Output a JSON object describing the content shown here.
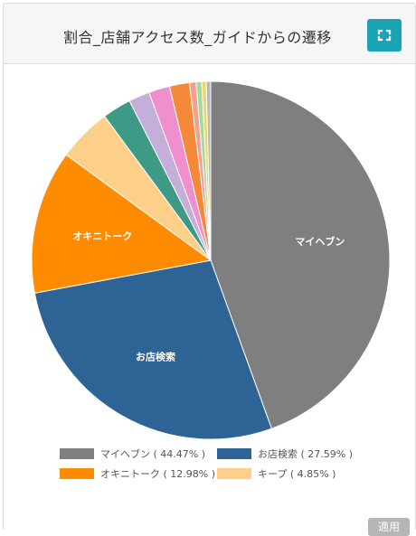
{
  "card": {
    "title": "割合_店舗アクセス数_ガイドからの遷移",
    "expand_icon": "fullscreen-expand-icon",
    "apply_label": "適用"
  },
  "colors": {
    "expand_button": "#1aa3b5",
    "apply_button": "#b5b5b5"
  },
  "chart_data": {
    "type": "pie",
    "title": "",
    "start_angle_deg": 0,
    "direction": "clockwise",
    "slices": [
      {
        "label": "マイヘブン",
        "value": 44.47,
        "color": "#7f7f7f",
        "show_label": true,
        "in_legend": true
      },
      {
        "label": "お店検索",
        "value": 27.59,
        "color": "#2e6396",
        "show_label": true,
        "in_legend": true
      },
      {
        "label": "オキニトーク",
        "value": 12.98,
        "color": "#ff8c00",
        "show_label": true,
        "in_legend": true
      },
      {
        "label": "キープ",
        "value": 4.85,
        "color": "#fdd08a",
        "show_label": false,
        "in_legend": true
      },
      {
        "label": "",
        "value": 2.6,
        "color": "#3e9a87",
        "show_label": false,
        "in_legend": false
      },
      {
        "label": "",
        "value": 1.9,
        "color": "#c5aed8",
        "show_label": false,
        "in_legend": false
      },
      {
        "label": "",
        "value": 1.9,
        "color": "#f08fce",
        "show_label": false,
        "in_legend": false
      },
      {
        "label": "",
        "value": 1.8,
        "color": "#f4893a",
        "show_label": false,
        "in_legend": false
      },
      {
        "label": "",
        "value": 0.6,
        "color": "#f3a091",
        "show_label": false,
        "in_legend": false
      },
      {
        "label": "",
        "value": 0.5,
        "color": "#a6d8a0",
        "show_label": false,
        "in_legend": false
      },
      {
        "label": "",
        "value": 0.4,
        "color": "#ecd66a",
        "show_label": false,
        "in_legend": false
      },
      {
        "label": "",
        "value": 0.4,
        "color": "#b8b8b8",
        "show_label": false,
        "in_legend": false
      }
    ],
    "legend": {
      "placement": "bottom",
      "entries": [
        {
          "text": "マイヘブン ( 44.47% )",
          "color": "#7f7f7f"
        },
        {
          "text": "お店検索 ( 27.59% )",
          "color": "#2e6396"
        },
        {
          "text": "オキニトーク ( 12.98% )",
          "color": "#ff8c00"
        },
        {
          "text": "キープ ( 4.85% )",
          "color": "#fdd08a"
        }
      ]
    }
  }
}
